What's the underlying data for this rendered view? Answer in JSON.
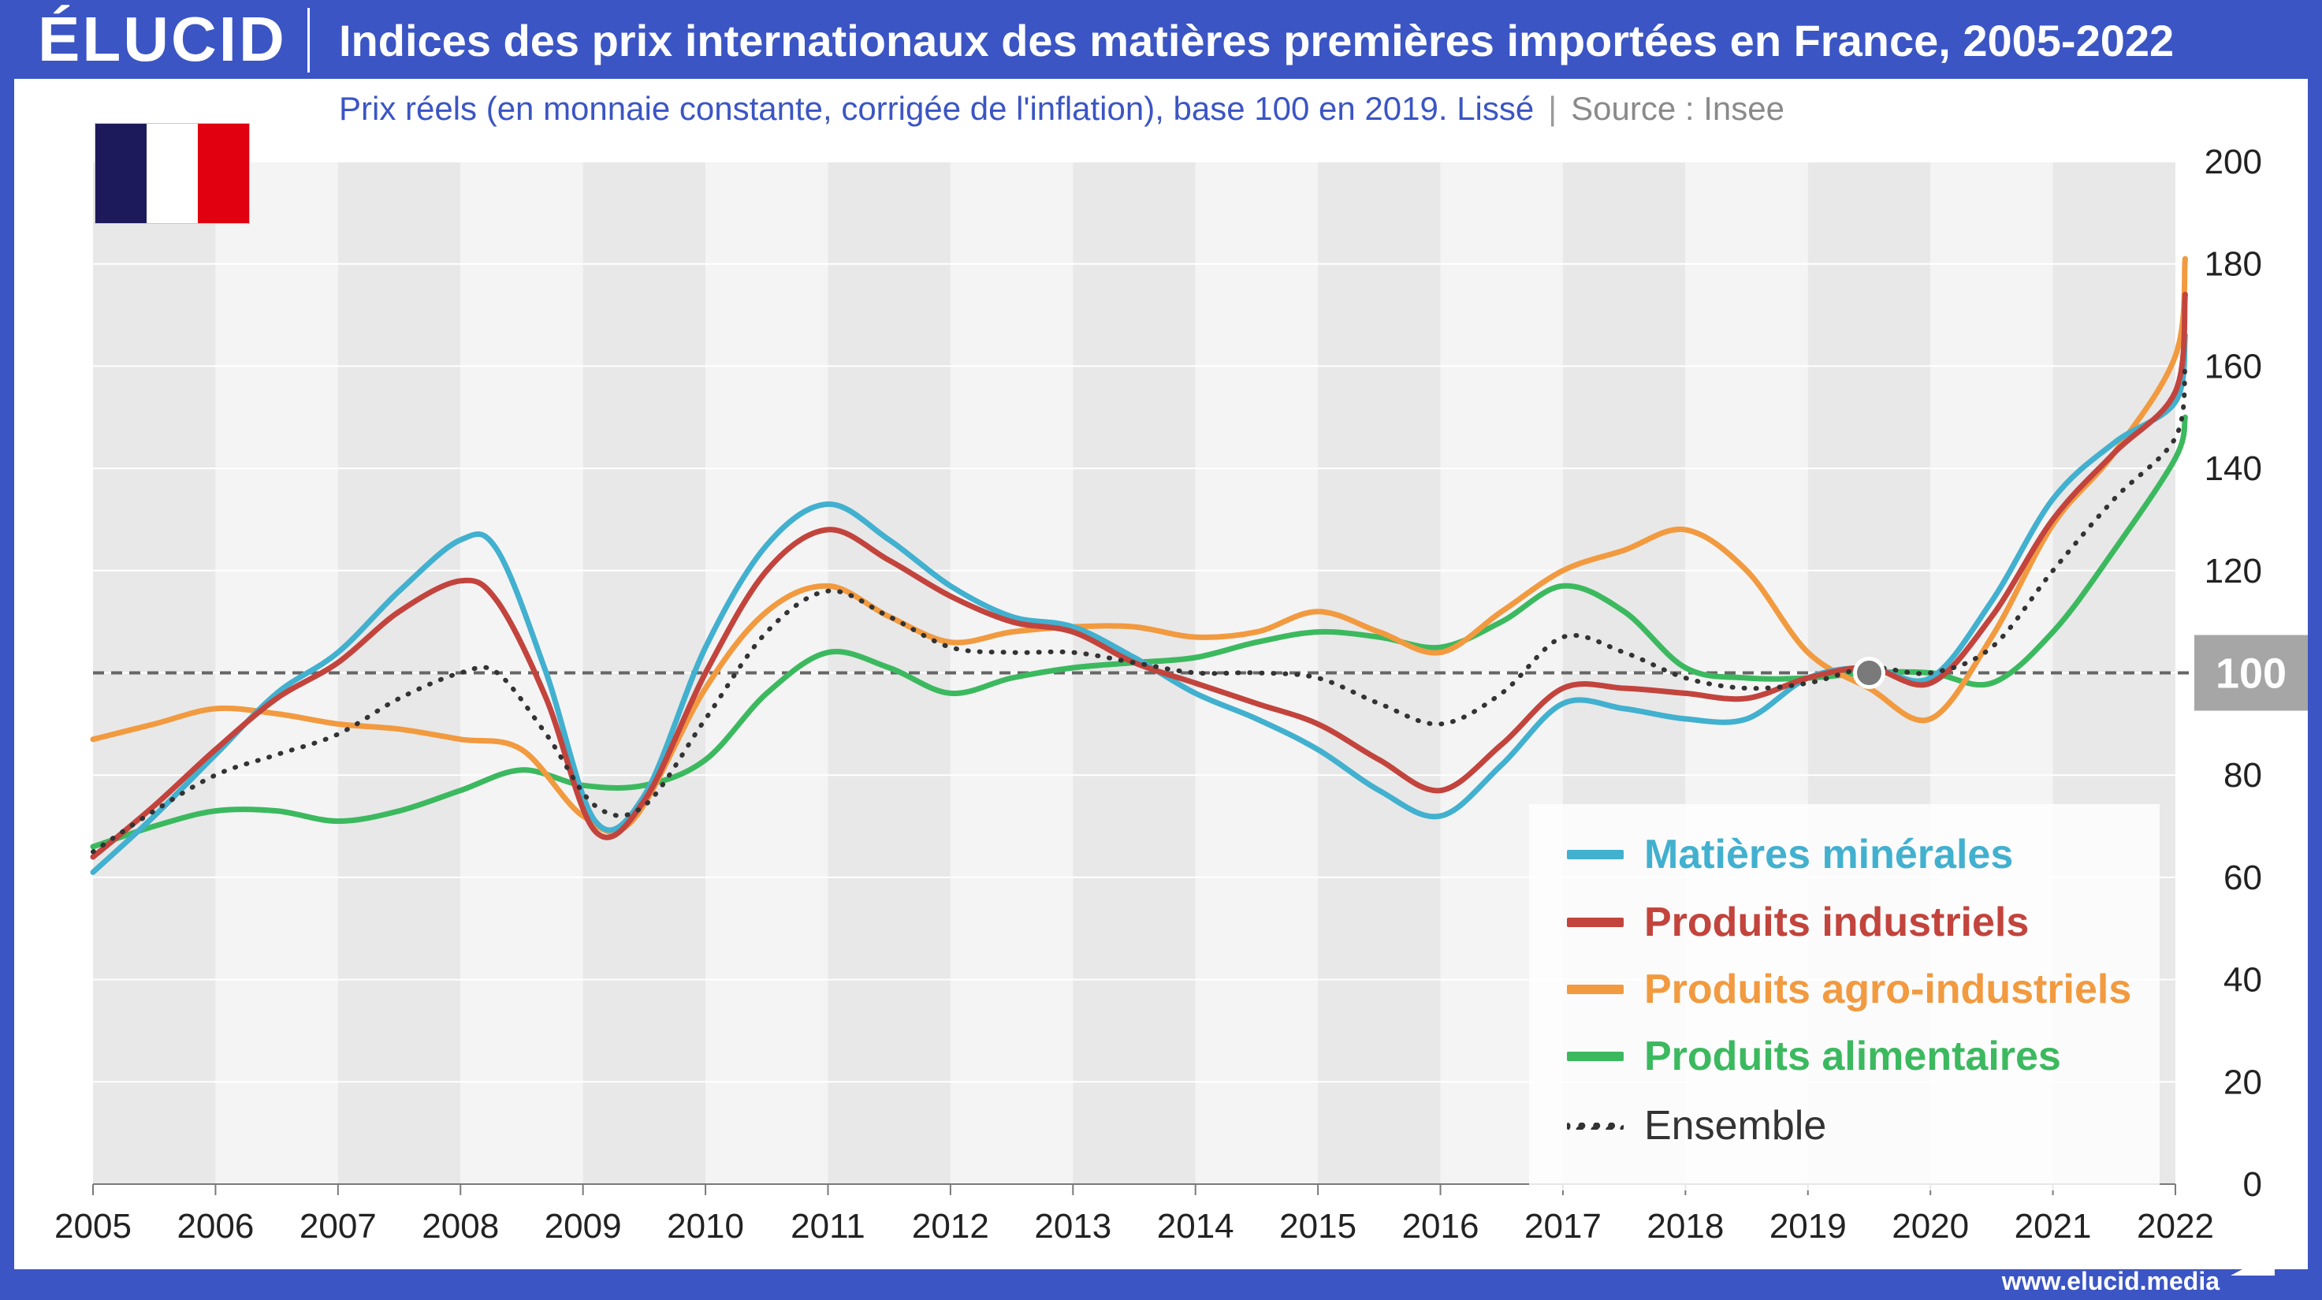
{
  "header": {
    "logo": "ÉLUCID",
    "title": "Indices des prix internationaux des matières premières importées en France, 2005-2022"
  },
  "subheader": {
    "subtitle": "Prix réels (en monnaie constante, corrigée de l'inflation), base 100 en 2019. Lissé",
    "separator": "|",
    "source": "Source : Insee"
  },
  "flag": {
    "icon": "french-flag-icon",
    "colors": [
      "#1d1a5c",
      "#ffffff",
      "#e0000f"
    ]
  },
  "footer": {
    "url": "www.elucid.media"
  },
  "colors": {
    "brand": "#3b55c4",
    "band_dark": "#e8e8e8",
    "band_light": "#f4f4f4",
    "reference_badge": "#a6a6a6"
  },
  "chart_data": {
    "type": "line",
    "title": "Indices des prix internationaux des matières premières importées en France, 2005-2022",
    "subtitle": "Prix réels (en monnaie constante, corrigée de l'inflation), base 100 en 2019. Lissé",
    "xlim": [
      2005,
      2022
    ],
    "ylim": [
      0,
      200
    ],
    "x_ticks": [
      "2005",
      "2006",
      "2007",
      "2008",
      "2009",
      "2010",
      "2011",
      "2012",
      "2013",
      "2014",
      "2015",
      "2016",
      "2017",
      "2018",
      "2019",
      "2020",
      "2021",
      "2022"
    ],
    "y_ticks": [
      0,
      20,
      40,
      60,
      80,
      100,
      120,
      140,
      160,
      180,
      200
    ],
    "reference_line": {
      "value": 100,
      "label": "100",
      "marker_x": 2019.5
    },
    "grid": true,
    "legend_position": "bottom-right",
    "series": [
      {
        "name": "Matières minérales",
        "color": "#42b0cf",
        "dash": "solid",
        "points": [
          [
            2005,
            61
          ],
          [
            2005.5,
            72
          ],
          [
            2006,
            84
          ],
          [
            2006.5,
            96
          ],
          [
            2007,
            104
          ],
          [
            2007.5,
            116
          ],
          [
            2008,
            126
          ],
          [
            2008.3,
            124
          ],
          [
            2008.7,
            100
          ],
          [
            2009.1,
            71
          ],
          [
            2009.5,
            76
          ],
          [
            2010,
            105
          ],
          [
            2010.5,
            125
          ],
          [
            2011,
            133
          ],
          [
            2011.5,
            126
          ],
          [
            2012,
            117
          ],
          [
            2012.5,
            111
          ],
          [
            2013,
            109
          ],
          [
            2013.5,
            103
          ],
          [
            2014,
            96
          ],
          [
            2014.5,
            91
          ],
          [
            2015,
            85
          ],
          [
            2015.5,
            77
          ],
          [
            2016,
            72
          ],
          [
            2016.5,
            82
          ],
          [
            2017,
            94
          ],
          [
            2017.5,
            93
          ],
          [
            2018,
            91
          ],
          [
            2018.5,
            91
          ],
          [
            2019,
            99
          ],
          [
            2019.5,
            101
          ],
          [
            2020,
            99
          ],
          [
            2020.5,
            114
          ],
          [
            2021,
            134
          ],
          [
            2021.5,
            145
          ],
          [
            2022,
            153
          ],
          [
            2022.08,
            166
          ]
        ]
      },
      {
        "name": "Produits industriels",
        "color": "#c2443d",
        "dash": "solid",
        "points": [
          [
            2005,
            64
          ],
          [
            2005.5,
            74
          ],
          [
            2006,
            85
          ],
          [
            2006.5,
            95
          ],
          [
            2007,
            102
          ],
          [
            2007.5,
            112
          ],
          [
            2008,
            118
          ],
          [
            2008.3,
            114
          ],
          [
            2008.7,
            95
          ],
          [
            2009.1,
            69
          ],
          [
            2009.5,
            75
          ],
          [
            2010,
            100
          ],
          [
            2010.5,
            120
          ],
          [
            2011,
            128
          ],
          [
            2011.5,
            122
          ],
          [
            2012,
            115
          ],
          [
            2012.5,
            110
          ],
          [
            2013,
            108
          ],
          [
            2013.5,
            102
          ],
          [
            2014,
            98
          ],
          [
            2014.5,
            94
          ],
          [
            2015,
            90
          ],
          [
            2015.5,
            83
          ],
          [
            2016,
            77
          ],
          [
            2016.5,
            86
          ],
          [
            2017,
            97
          ],
          [
            2017.5,
            97
          ],
          [
            2018,
            96
          ],
          [
            2018.5,
            95
          ],
          [
            2019,
            99
          ],
          [
            2019.5,
            101
          ],
          [
            2020,
            98
          ],
          [
            2020.5,
            111
          ],
          [
            2021,
            130
          ],
          [
            2021.5,
            143
          ],
          [
            2022,
            155
          ],
          [
            2022.08,
            174
          ]
        ]
      },
      {
        "name": "Produits agro-industriels",
        "color": "#f29a3f",
        "dash": "solid",
        "points": [
          [
            2005,
            87
          ],
          [
            2005.5,
            90
          ],
          [
            2006,
            93
          ],
          [
            2006.5,
            92
          ],
          [
            2007,
            90
          ],
          [
            2007.5,
            89
          ],
          [
            2008,
            87
          ],
          [
            2008.5,
            85
          ],
          [
            2009,
            72
          ],
          [
            2009.4,
            71
          ],
          [
            2010,
            97
          ],
          [
            2010.5,
            112
          ],
          [
            2011,
            117
          ],
          [
            2011.5,
            111
          ],
          [
            2012,
            106
          ],
          [
            2012.5,
            108
          ],
          [
            2013,
            109
          ],
          [
            2013.5,
            109
          ],
          [
            2014,
            107
          ],
          [
            2014.5,
            108
          ],
          [
            2015,
            112
          ],
          [
            2015.5,
            108
          ],
          [
            2016,
            104
          ],
          [
            2016.5,
            112
          ],
          [
            2017,
            120
          ],
          [
            2017.5,
            124
          ],
          [
            2018,
            128
          ],
          [
            2018.5,
            120
          ],
          [
            2019,
            104
          ],
          [
            2019.5,
            97
          ],
          [
            2020,
            91
          ],
          [
            2020.5,
            107
          ],
          [
            2021,
            129
          ],
          [
            2021.5,
            143
          ],
          [
            2022,
            162
          ],
          [
            2022.08,
            181
          ]
        ]
      },
      {
        "name": "Produits alimentaires",
        "color": "#3cb95f",
        "dash": "solid",
        "points": [
          [
            2005,
            66
          ],
          [
            2005.5,
            70
          ],
          [
            2006,
            73
          ],
          [
            2006.5,
            73
          ],
          [
            2007,
            71
          ],
          [
            2007.5,
            73
          ],
          [
            2008,
            77
          ],
          [
            2008.5,
            81
          ],
          [
            2009,
            78
          ],
          [
            2009.5,
            78
          ],
          [
            2010,
            83
          ],
          [
            2010.5,
            96
          ],
          [
            2011,
            104
          ],
          [
            2011.5,
            101
          ],
          [
            2012,
            96
          ],
          [
            2012.5,
            99
          ],
          [
            2013,
            101
          ],
          [
            2013.5,
            102
          ],
          [
            2014,
            103
          ],
          [
            2014.5,
            106
          ],
          [
            2015,
            108
          ],
          [
            2015.5,
            107
          ],
          [
            2016,
            105
          ],
          [
            2016.5,
            110
          ],
          [
            2017,
            117
          ],
          [
            2017.5,
            112
          ],
          [
            2018,
            101
          ],
          [
            2018.5,
            99
          ],
          [
            2019,
            99
          ],
          [
            2019.5,
            100
          ],
          [
            2020,
            100
          ],
          [
            2020.5,
            98
          ],
          [
            2021,
            108
          ],
          [
            2021.5,
            124
          ],
          [
            2022,
            142
          ],
          [
            2022.08,
            150
          ]
        ]
      },
      {
        "name": "Ensemble",
        "color": "#333333",
        "dash": "dotted",
        "points": [
          [
            2005,
            65
          ],
          [
            2005.5,
            73
          ],
          [
            2006,
            80
          ],
          [
            2006.5,
            84
          ],
          [
            2007,
            88
          ],
          [
            2007.5,
            95
          ],
          [
            2008,
            100
          ],
          [
            2008.3,
            100
          ],
          [
            2008.7,
            88
          ],
          [
            2009.1,
            74
          ],
          [
            2009.5,
            74
          ],
          [
            2010,
            91
          ],
          [
            2010.5,
            108
          ],
          [
            2011,
            116
          ],
          [
            2011.5,
            111
          ],
          [
            2012,
            105
          ],
          [
            2012.5,
            104
          ],
          [
            2013,
            104
          ],
          [
            2013.5,
            102
          ],
          [
            2014,
            100
          ],
          [
            2014.5,
            100
          ],
          [
            2015,
            99
          ],
          [
            2015.5,
            94
          ],
          [
            2016,
            90
          ],
          [
            2016.5,
            96
          ],
          [
            2017,
            107
          ],
          [
            2017.5,
            104
          ],
          [
            2018,
            99
          ],
          [
            2018.5,
            97
          ],
          [
            2019,
            98
          ],
          [
            2019.5,
            101
          ],
          [
            2020,
            100
          ],
          [
            2020.5,
            105
          ],
          [
            2021,
            120
          ],
          [
            2021.5,
            134
          ],
          [
            2022,
            146
          ],
          [
            2022.08,
            160
          ]
        ]
      }
    ]
  }
}
